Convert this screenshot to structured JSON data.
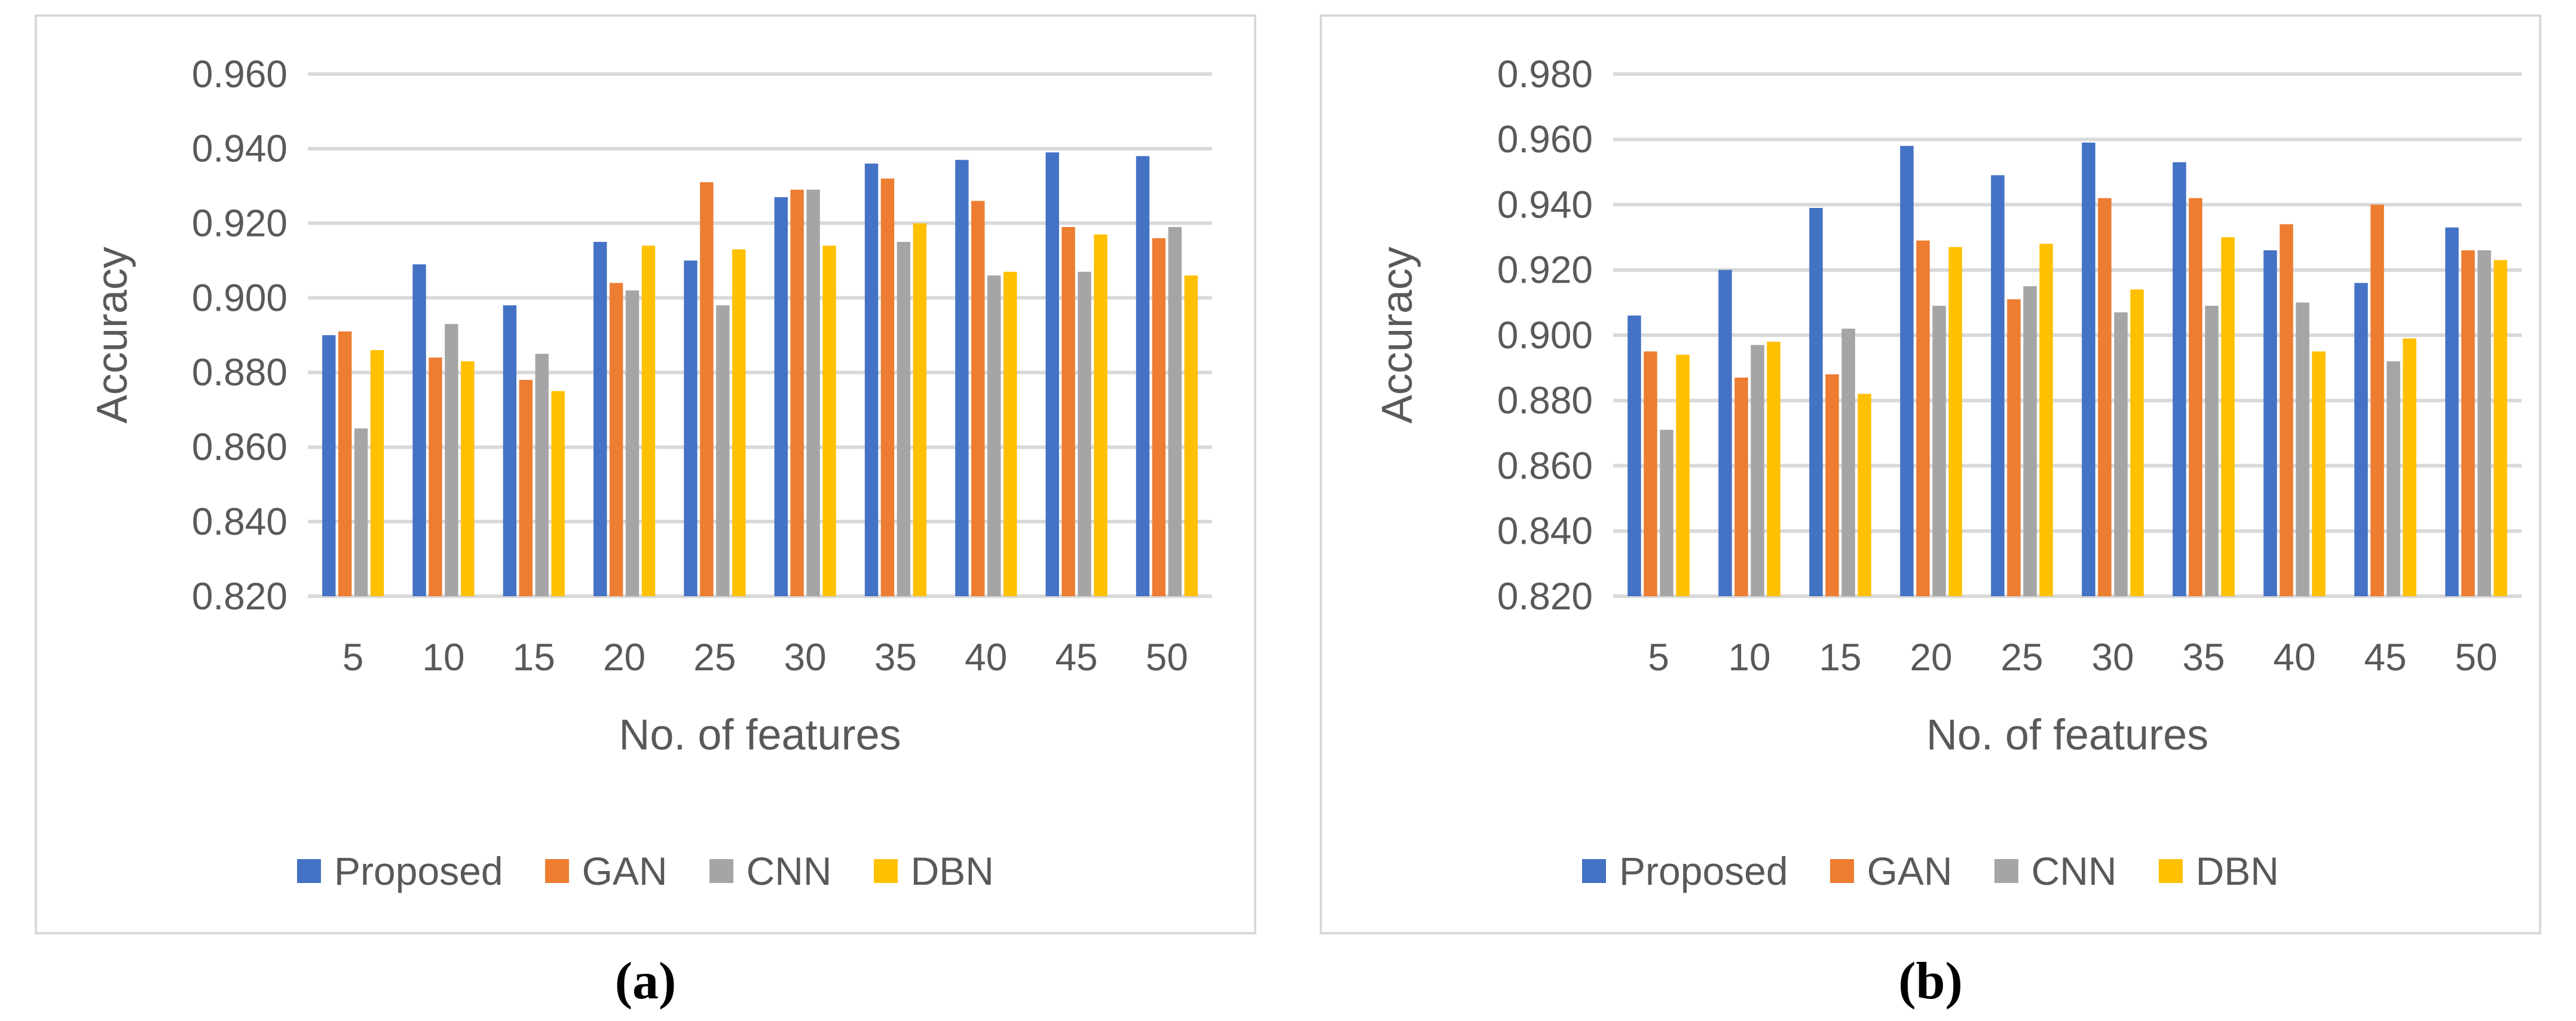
{
  "palette": {
    "proposed": "#4472C4",
    "gan": "#ED7D31",
    "cnn": "#A5A5A5",
    "dbn": "#FFC000",
    "gridline": "#D9D9D9",
    "axis_text": "#595959",
    "panel_border": "#D9D9D9",
    "caption_text": "#000000"
  },
  "chart_data": [
    {
      "id": "a",
      "type": "bar",
      "title": "",
      "xlabel": "No. of features",
      "ylabel": "Accuracy",
      "caption": "(a)",
      "grid": true,
      "legend_position": "bottom",
      "ylim": [
        0.82,
        0.96
      ],
      "ytick_step": 0.02,
      "ytick_decimals": 3,
      "categories": [
        "5",
        "10",
        "15",
        "20",
        "25",
        "30",
        "35",
        "40",
        "45",
        "50"
      ],
      "series": [
        {
          "name": "Proposed",
          "color": "#4472C4",
          "values": [
            0.89,
            0.909,
            0.898,
            0.915,
            0.91,
            0.927,
            0.936,
            0.937,
            0.939,
            0.938
          ]
        },
        {
          "name": "GAN",
          "color": "#ED7D31",
          "values": [
            0.891,
            0.884,
            0.878,
            0.904,
            0.931,
            0.929,
            0.932,
            0.926,
            0.919,
            0.916
          ]
        },
        {
          "name": "CNN",
          "color": "#A5A5A5",
          "values": [
            0.865,
            0.893,
            0.885,
            0.902,
            0.898,
            0.929,
            0.915,
            0.906,
            0.907,
            0.919
          ]
        },
        {
          "name": "DBN",
          "color": "#FFC000",
          "values": [
            0.886,
            0.883,
            0.875,
            0.914,
            0.913,
            0.914,
            0.92,
            0.907,
            0.917,
            0.906
          ]
        }
      ]
    },
    {
      "id": "b",
      "type": "bar",
      "title": "",
      "xlabel": "No. of features",
      "ylabel": "Accuracy",
      "caption": "(b)",
      "grid": true,
      "legend_position": "bottom",
      "ylim": [
        0.82,
        0.98
      ],
      "ytick_step": 0.02,
      "ytick_decimals": 3,
      "categories": [
        "5",
        "10",
        "15",
        "20",
        "25",
        "30",
        "35",
        "40",
        "45",
        "50"
      ],
      "series": [
        {
          "name": "Proposed",
          "color": "#4472C4",
          "values": [
            0.906,
            0.92,
            0.939,
            0.958,
            0.949,
            0.959,
            0.953,
            0.926,
            0.916,
            0.933
          ]
        },
        {
          "name": "GAN",
          "color": "#ED7D31",
          "values": [
            0.895,
            0.887,
            0.888,
            0.929,
            0.911,
            0.942,
            0.942,
            0.934,
            0.94,
            0.926
          ]
        },
        {
          "name": "CNN",
          "color": "#A5A5A5",
          "values": [
            0.871,
            0.897,
            0.902,
            0.909,
            0.915,
            0.907,
            0.909,
            0.91,
            0.892,
            0.926
          ]
        },
        {
          "name": "DBN",
          "color": "#FFC000",
          "values": [
            0.894,
            0.898,
            0.882,
            0.927,
            0.928,
            0.914,
            0.93,
            0.895,
            0.899,
            0.923
          ]
        }
      ]
    }
  ]
}
